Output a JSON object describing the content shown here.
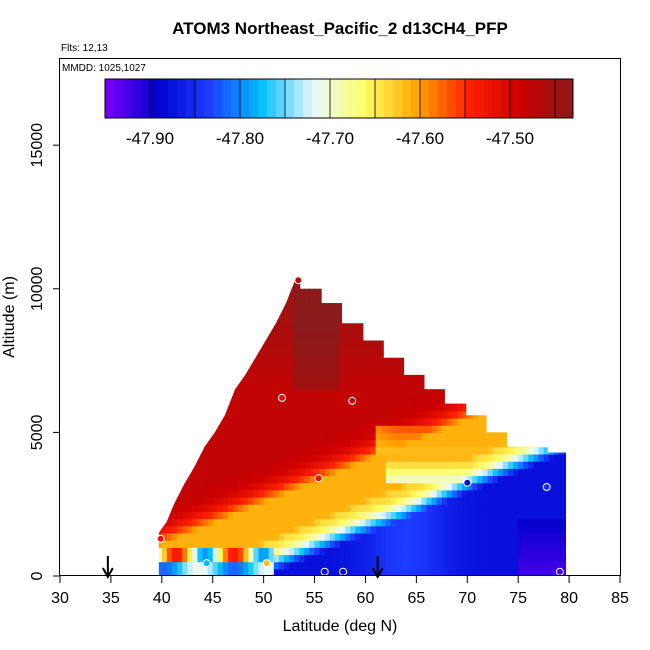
{
  "header": {
    "title": "ATOM3 Northeast_Pacific_2 d13CH4_PFP",
    "flights": "Flts: 12,13",
    "mmdd": "MMDD: 1025,1027"
  },
  "colors": {
    "scale": [
      "#7f00ff",
      "#0000cc",
      "#1e3cff",
      "#00bfff",
      "#e8f8ff",
      "#ffff66",
      "#ffa500",
      "#ff2000",
      "#cc0000",
      "#8b1a1a"
    ],
    "point_stroke": "#ffffff",
    "frame": "#000000"
  },
  "chart_data": {
    "type": "heatmap",
    "title": "ATOM3 Northeast_Pacific_2 d13CH4_PFP",
    "xlabel": "Latitude (deg N)",
    "ylabel": "Altitude (m)",
    "xlim": [
      30,
      85
    ],
    "ylim": [
      0,
      18000
    ],
    "xticks": [
      30,
      35,
      40,
      45,
      50,
      55,
      60,
      65,
      70,
      75,
      80,
      85
    ],
    "yticks": [
      0,
      5000,
      10000,
      15000
    ],
    "colorbar": {
      "min": -47.95,
      "max": -47.43,
      "ticks": [
        -47.9,
        -47.8,
        -47.7,
        -47.6,
        -47.5
      ],
      "tick_labels": [
        "-47.90",
        "-47.80",
        "-47.70",
        "-47.60",
        "-47.50"
      ]
    },
    "arrows_latitude": [
      34.7,
      61.2
    ],
    "envelope": [
      [
        39.7,
        0
      ],
      [
        39.7,
        1500
      ],
      [
        40.5,
        1900
      ],
      [
        41.2,
        2500
      ],
      [
        42.2,
        3200
      ],
      [
        43.2,
        3800
      ],
      [
        44.2,
        4500
      ],
      [
        45.2,
        5000
      ],
      [
        46.2,
        5600
      ],
      [
        47.2,
        6500
      ],
      [
        48.2,
        7000
      ],
      [
        49.2,
        7600
      ],
      [
        50.2,
        8200
      ],
      [
        51.2,
        8800
      ],
      [
        52.2,
        9500
      ],
      [
        53.2,
        10400
      ],
      [
        53.6,
        10400
      ],
      [
        53.6,
        10000
      ],
      [
        55.7,
        10000
      ],
      [
        55.7,
        9500
      ],
      [
        57.7,
        9500
      ],
      [
        57.7,
        8800
      ],
      [
        59.8,
        8800
      ],
      [
        59.8,
        8200
      ],
      [
        61.8,
        8200
      ],
      [
        61.8,
        7600
      ],
      [
        63.8,
        7600
      ],
      [
        63.8,
        7000
      ],
      [
        65.8,
        7000
      ],
      [
        65.8,
        6500
      ],
      [
        67.8,
        6500
      ],
      [
        67.8,
        6000
      ],
      [
        69.9,
        6000
      ],
      [
        69.9,
        5600
      ],
      [
        71.9,
        5600
      ],
      [
        71.9,
        5000
      ],
      [
        73.9,
        5000
      ],
      [
        73.9,
        4500
      ],
      [
        77.9,
        4500
      ],
      [
        77.9,
        4300
      ],
      [
        79.7,
        4300
      ],
      [
        79.7,
        0
      ]
    ],
    "points": [
      {
        "lat": 53.4,
        "alt": 10300,
        "value": -47.48
      },
      {
        "lat": 51.8,
        "alt": 6200,
        "value": -47.5
      },
      {
        "lat": 58.7,
        "alt": 6100,
        "value": -47.5
      },
      {
        "lat": 55.4,
        "alt": 3400,
        "value": -47.52
      },
      {
        "lat": 70.0,
        "alt": 3250,
        "value": -47.88
      },
      {
        "lat": 77.8,
        "alt": 3100,
        "value": -47.85
      },
      {
        "lat": 39.9,
        "alt": 1300,
        "value": -47.52
      },
      {
        "lat": 44.4,
        "alt": 450,
        "value": -47.78
      },
      {
        "lat": 50.3,
        "alt": 450,
        "value": -47.62
      },
      {
        "lat": 56.0,
        "alt": 150,
        "value": -47.9
      },
      {
        "lat": 57.8,
        "alt": 150,
        "value": -47.9
      },
      {
        "lat": 79.1,
        "alt": 150,
        "value": -47.93
      }
    ]
  }
}
